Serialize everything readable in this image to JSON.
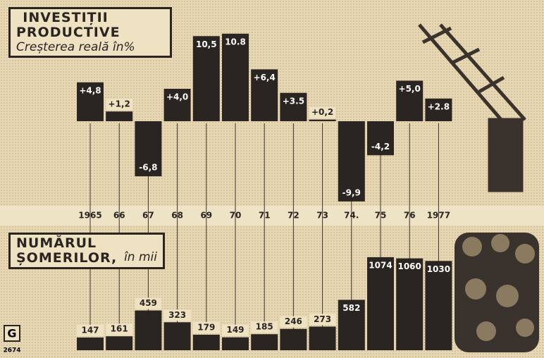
{
  "chart_data": [
    {
      "type": "bar",
      "title": "INVESTIȚII PRODUCTIVE",
      "subtitle": "Creșterea reală în%",
      "categories": [
        "1965",
        "66",
        "67",
        "68",
        "69",
        "70",
        "71",
        "72",
        "73",
        "74.",
        "75",
        "76",
        "1977"
      ],
      "values": [
        4.8,
        1.2,
        -6.8,
        4.0,
        10.5,
        10.8,
        6.4,
        3.5,
        0.2,
        -9.9,
        -4.2,
        5.0,
        2.8
      ],
      "value_labels": [
        "+4,8",
        "+1,2",
        "-6,8",
        "+4,0",
        "10,5",
        "10.8",
        "+6,4",
        "+3.5",
        "+0,2",
        "-9,9",
        "-4,2",
        "+5,0",
        "+2.8"
      ],
      "color": "#2b2522"
    },
    {
      "type": "bar",
      "title": "NUMĂRUL ȘOMERILOR,",
      "subtitle": "în mii",
      "values": [
        147,
        161,
        459,
        323,
        179,
        149,
        185,
        246,
        273,
        582,
        1074,
        1060,
        1030
      ],
      "color": "#2b2522"
    }
  ],
  "logo": {
    "letter": "G",
    "number": "2674"
  }
}
